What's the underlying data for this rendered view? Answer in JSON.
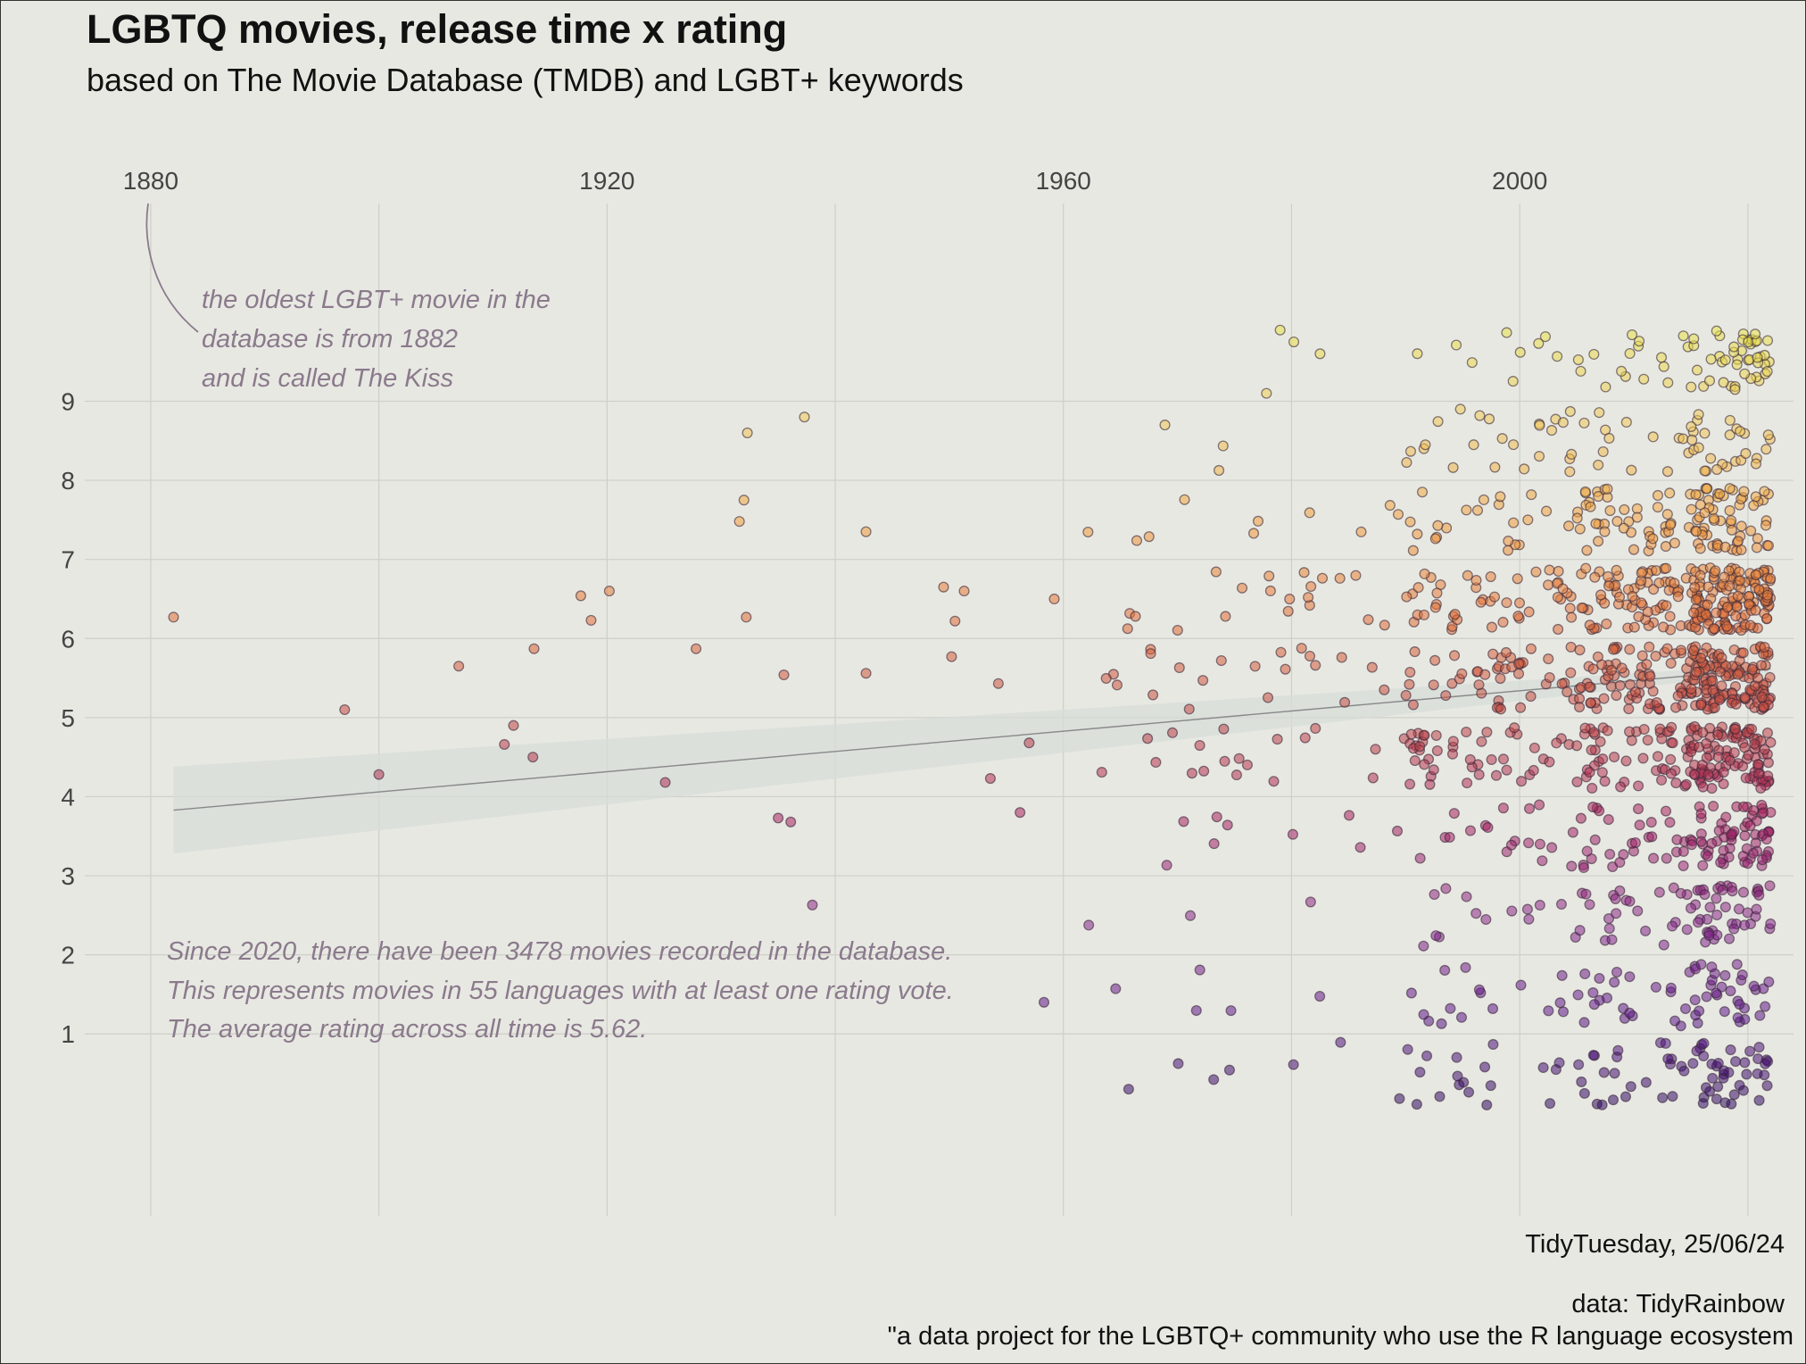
{
  "chart_data": {
    "type": "scatter",
    "title": "LGBTQ movies, release time x rating",
    "subtitle": "based on The Movie Database (TMDB) and LGBT+ keywords",
    "x_ticks": [
      "1880",
      "1920",
      "1960",
      "2000"
    ],
    "y_ticks": [
      "1",
      "2",
      "3",
      "4",
      "5",
      "6",
      "7",
      "8",
      "9"
    ],
    "xlim": [
      1875,
      2024
    ],
    "ylim": [
      -1.3,
      11.5
    ],
    "grid": true,
    "legend": "none",
    "color_scale": [
      "#2d0a5e",
      "#5e1a8a",
      "#8b2a8a",
      "#a8245f",
      "#c24a45",
      "#e0703a",
      "#f0a040",
      "#eec85a",
      "#e6e44a"
    ],
    "points": [
      {
        "x": 1882,
        "y": 6.27
      },
      {
        "x": 1897,
        "y": 5.1
      },
      {
        "x": 1900,
        "y": 4.28
      },
      {
        "x": 1907,
        "y": 5.65
      },
      {
        "x": 1911,
        "y": 4.66
      },
      {
        "x": 1911.8,
        "y": 4.9
      },
      {
        "x": 1913.5,
        "y": 4.5
      },
      {
        "x": 1913.6,
        "y": 5.87
      },
      {
        "x": 1917.7,
        "y": 6.54
      },
      {
        "x": 1918.6,
        "y": 6.23
      },
      {
        "x": 1920.2,
        "y": 6.6
      },
      {
        "x": 1925.1,
        "y": 4.18
      },
      {
        "x": 1927.8,
        "y": 5.87
      },
      {
        "x": 1931.6,
        "y": 7.48
      },
      {
        "x": 1932.0,
        "y": 7.75
      },
      {
        "x": 1932.2,
        "y": 6.27
      },
      {
        "x": 1932.3,
        "y": 8.6
      },
      {
        "x": 1935.0,
        "y": 3.73
      },
      {
        "x": 1935.5,
        "y": 5.54
      },
      {
        "x": 1936.1,
        "y": 3.68
      },
      {
        "x": 1937.3,
        "y": 8.8
      },
      {
        "x": 1938.0,
        "y": 2.63
      },
      {
        "x": 1942.7,
        "y": 7.35
      },
      {
        "x": 1942.7,
        "y": 5.56
      },
      {
        "x": 1949.5,
        "y": 6.65
      },
      {
        "x": 1950.2,
        "y": 5.77
      },
      {
        "x": 1950.5,
        "y": 6.22
      },
      {
        "x": 1951.3,
        "y": 6.6
      },
      {
        "x": 1953.6,
        "y": 4.23
      },
      {
        "x": 1954.3,
        "y": 5.43
      },
      {
        "x": 1956.2,
        "y": 3.8
      },
      {
        "x": 1957.0,
        "y": 4.68
      },
      {
        "x": 1958.3,
        "y": 1.4
      },
      {
        "x": 1959.2,
        "y": 6.5
      },
      {
        "x": 1979.0,
        "y": 9.9
      },
      {
        "x": 1980.2,
        "y": 9.75
      },
      {
        "x": 1982.5,
        "y": 9.6
      },
      {
        "x": 1977.8,
        "y": 9.1
      },
      {
        "x": 1968.9,
        "y": 8.7
      },
      {
        "x": 1991.6,
        "y": 8.4
      },
      {
        "x": 1994.8,
        "y": 8.9
      }
    ],
    "trend": {
      "x": [
        1882,
        2022
      ],
      "y": [
        3.83,
        5.62
      ]
    },
    "annotations": [
      "the oldest LGBT+ movie in the",
      "database is from 1882",
      "and is called The Kiss",
      "Since 2020, there have been 3478 movies recorded in the database.",
      "This represents movies in 55 languages with at least one rating vote.",
      "The average rating across all time is 5.62."
    ]
  },
  "caption": {
    "line1": "TidyTuesday, 25/06/24",
    "line2": "data: TidyRainbow",
    "line3": "\"a data project for the LGBTQ+ community who use the R language ecosystem"
  }
}
